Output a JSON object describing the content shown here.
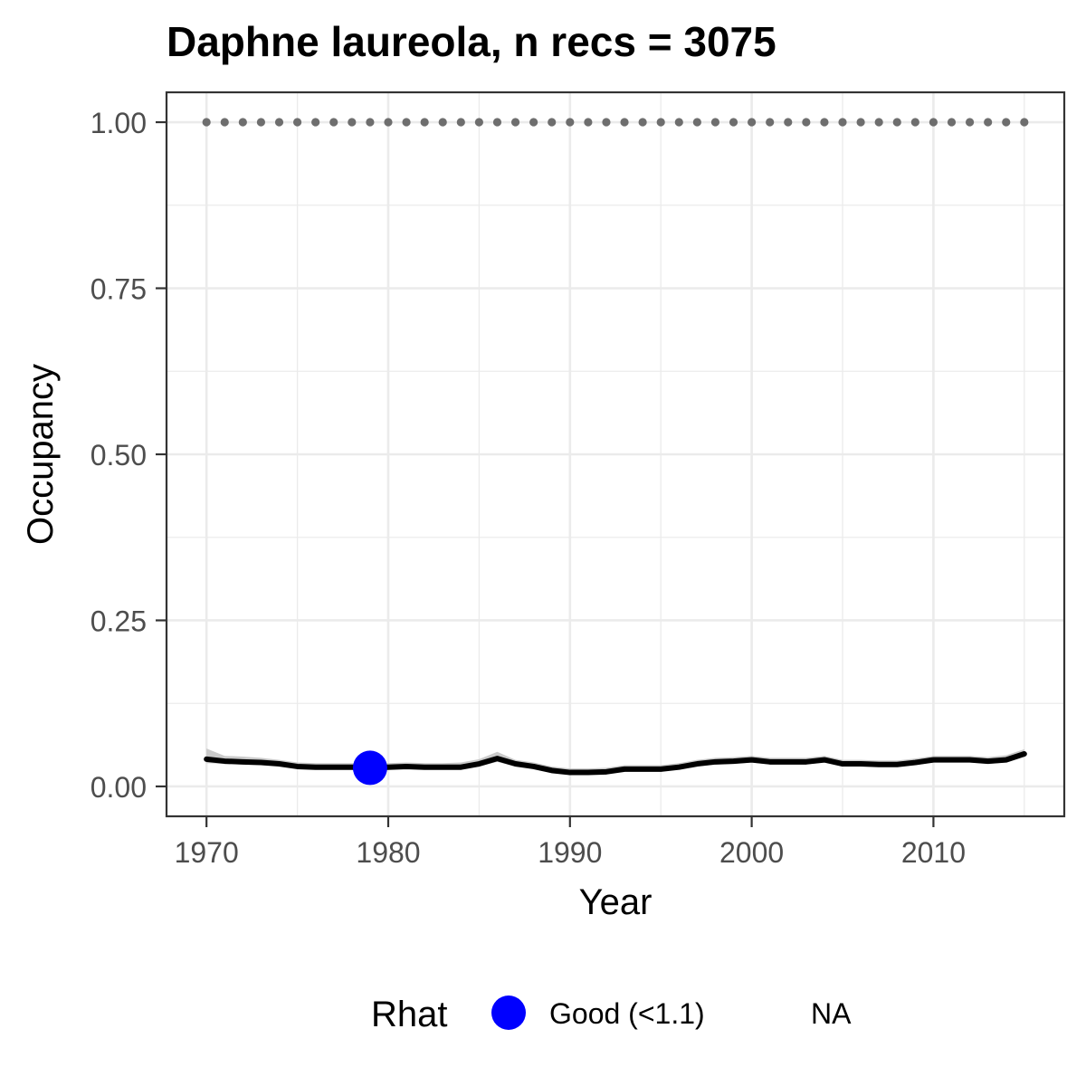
{
  "chart_data": {
    "type": "line",
    "title": "Daphne laureola, n recs = 3075",
    "xlabel": "Year",
    "ylabel": "Occupancy",
    "xlim": [
      1967.8,
      2017.2
    ],
    "ylim": [
      -0.045,
      1.045
    ],
    "x_ticks": [
      1970,
      1980,
      1990,
      2000,
      2010
    ],
    "y_ticks": [
      0.0,
      0.25,
      0.5,
      0.75,
      1.0
    ],
    "y_tick_labels": [
      "0.00",
      "0.25",
      "0.50",
      "0.75",
      "1.00"
    ],
    "grid": true,
    "legend_position": "bottom",
    "series": [
      {
        "x": [
          1970,
          1971,
          1972,
          1973,
          1974,
          1975,
          1976,
          1977,
          1978,
          1979,
          1980,
          1981,
          1982,
          1983,
          1984,
          1985,
          1986,
          1987,
          1988,
          1989,
          1990,
          1991,
          1992,
          1993,
          1994,
          1995,
          1996,
          1997,
          1998,
          1999,
          2000,
          2001,
          2002,
          2003,
          2004,
          2005,
          2006,
          2007,
          2008,
          2009,
          2010,
          2011,
          2012,
          2013,
          2014,
          2015
        ],
        "y": [
          0.041,
          0.038,
          0.037,
          0.036,
          0.034,
          0.03,
          0.029,
          0.029,
          0.029,
          0.028,
          0.029,
          0.03,
          0.029,
          0.029,
          0.029,
          0.034,
          0.042,
          0.034,
          0.03,
          0.024,
          0.021,
          0.021,
          0.022,
          0.026,
          0.026,
          0.026,
          0.029,
          0.034,
          0.037,
          0.038,
          0.04,
          0.037,
          0.037,
          0.037,
          0.04,
          0.034,
          0.034,
          0.033,
          0.033,
          0.036,
          0.04,
          0.04,
          0.04,
          0.038,
          0.04,
          0.049
        ],
        "lower": [
          0.035,
          0.034,
          0.033,
          0.032,
          0.031,
          0.027,
          0.026,
          0.026,
          0.026,
          0.025,
          0.026,
          0.027,
          0.026,
          0.026,
          0.026,
          0.03,
          0.037,
          0.03,
          0.027,
          0.021,
          0.018,
          0.018,
          0.019,
          0.023,
          0.023,
          0.023,
          0.026,
          0.03,
          0.033,
          0.034,
          0.036,
          0.033,
          0.033,
          0.033,
          0.036,
          0.031,
          0.031,
          0.03,
          0.03,
          0.032,
          0.036,
          0.036,
          0.036,
          0.034,
          0.036,
          0.045
        ],
        "upper": [
          0.057,
          0.046,
          0.045,
          0.043,
          0.04,
          0.036,
          0.035,
          0.035,
          0.035,
          0.034,
          0.035,
          0.036,
          0.035,
          0.035,
          0.036,
          0.041,
          0.052,
          0.04,
          0.036,
          0.03,
          0.027,
          0.027,
          0.028,
          0.032,
          0.032,
          0.032,
          0.035,
          0.04,
          0.043,
          0.044,
          0.046,
          0.043,
          0.043,
          0.043,
          0.046,
          0.04,
          0.04,
          0.039,
          0.039,
          0.042,
          0.046,
          0.046,
          0.046,
          0.044,
          0.047,
          0.056
        ]
      }
    ],
    "reference_points": {
      "y": 1.0,
      "x_start": 1970,
      "x_end": 2015,
      "step": 1
    },
    "highlight_points": [
      {
        "x": 1979,
        "y": 0.028,
        "category": "Good (<1.1)"
      }
    ],
    "legend": {
      "title": "Rhat",
      "entries": [
        {
          "label": "Good (<1.1)",
          "color": "#0000ff"
        },
        {
          "label": "NA",
          "color": null
        }
      ]
    },
    "colors": {
      "line": "#000000",
      "ribbon": "#bdbdbd",
      "reference_points": "#6e6e6e",
      "good": "#0000ff",
      "grid": "#ebebeb",
      "panel_border": "#333333",
      "tick_label": "#4d4d4d"
    }
  }
}
